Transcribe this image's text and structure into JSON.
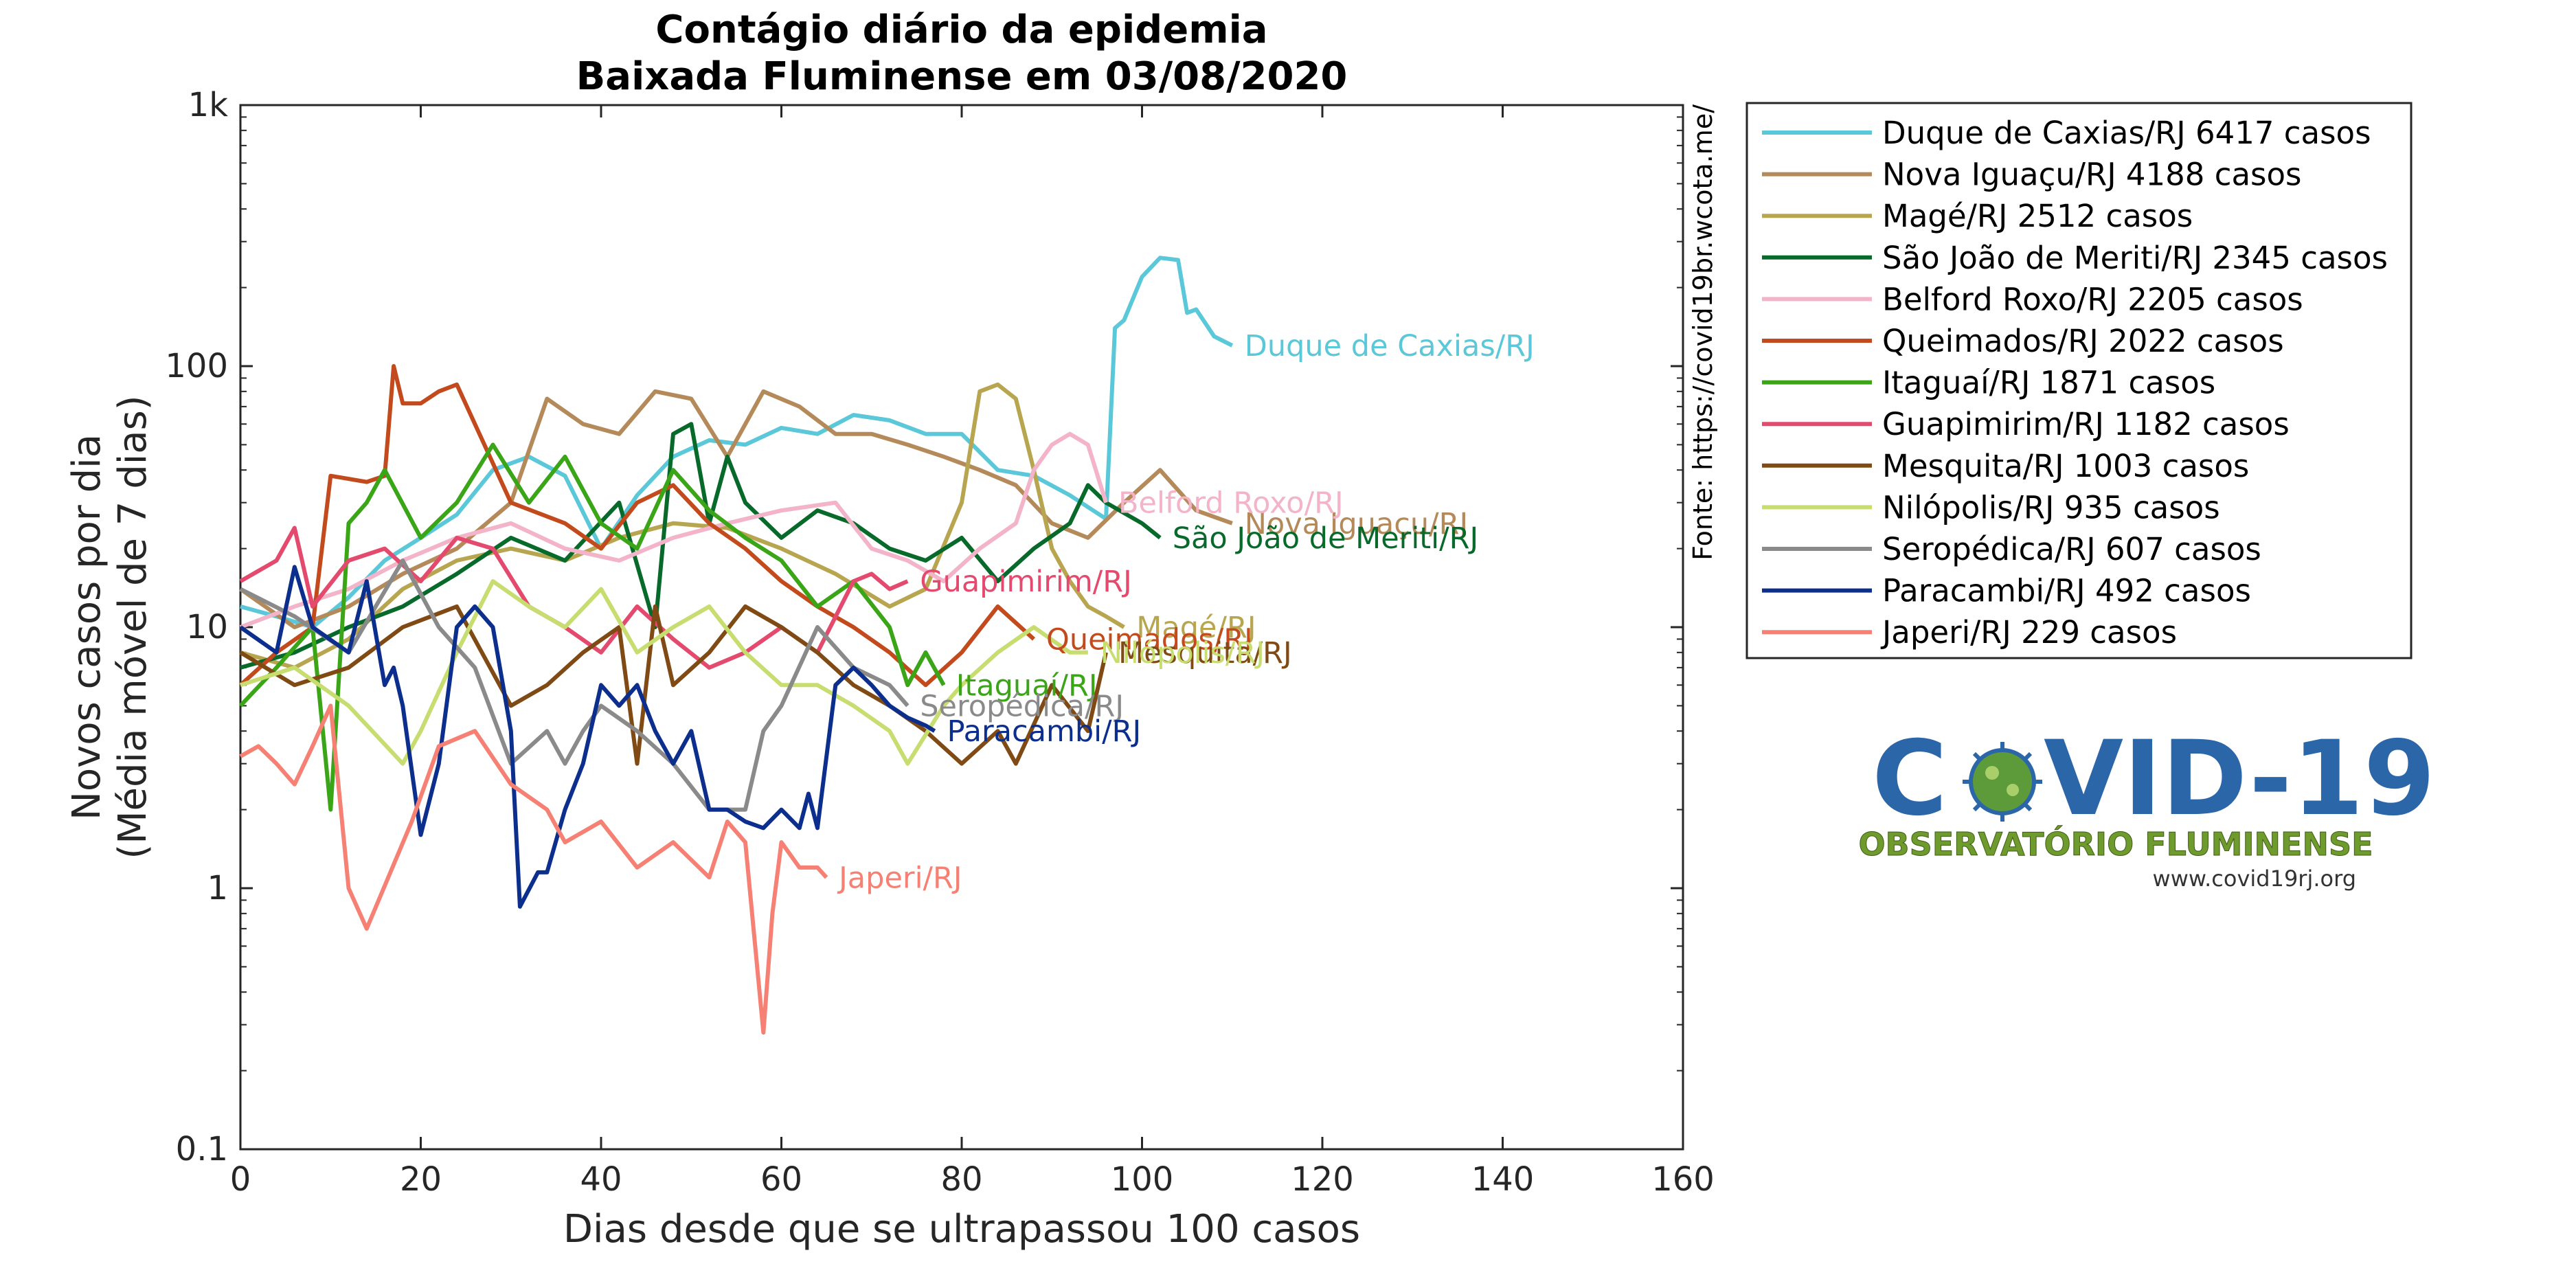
{
  "chart_data": {
    "type": "line",
    "title": "Contágio diário da epidemia",
    "subtitle": "Baixada Fluminense em 03/08/2020",
    "xlabel": "Dias desde que se ultrapassou 100 casos",
    "ylabel_line1": "Novos casos por dia",
    "ylabel_line2": "(Média móvel de 7 dias)",
    "xlim": [
      0,
      160
    ],
    "ylim": [
      0.1,
      1000
    ],
    "y_scale": "log",
    "x_ticks": [
      0,
      20,
      40,
      60,
      80,
      100,
      120,
      140,
      160
    ],
    "y_ticks": [
      {
        "v": 0.1,
        "label": "0.1"
      },
      {
        "v": 1,
        "label": "1"
      },
      {
        "v": 10,
        "label": "10"
      },
      {
        "v": 100,
        "label": "100"
      },
      {
        "v": 1000,
        "label": "1k"
      }
    ],
    "grid": false,
    "legend_position": "outside-right",
    "series": [
      {
        "name": "Duque de Caxias/RJ",
        "legend": "Duque de Caxias/RJ  6417 casos",
        "color": "#5ac8d8",
        "x": [
          0,
          4,
          8,
          12,
          16,
          20,
          24,
          28,
          32,
          36,
          40,
          44,
          48,
          52,
          56,
          60,
          64,
          68,
          72,
          76,
          80,
          84,
          88,
          92,
          96,
          97,
          98,
          100,
          102,
          104,
          105,
          106,
          108,
          110
        ],
        "y": [
          12,
          11,
          10,
          13,
          18,
          22,
          27,
          40,
          45,
          38,
          20,
          32,
          45,
          52,
          50,
          58,
          55,
          65,
          62,
          55,
          55,
          40,
          38,
          32,
          26,
          140,
          150,
          220,
          260,
          255,
          160,
          165,
          130,
          120
        ]
      },
      {
        "name": "Nova Iguaçu/RJ",
        "legend": "Nova Iguaçu/RJ  4188 casos",
        "color": "#b58a5a",
        "x": [
          0,
          6,
          12,
          18,
          24,
          30,
          34,
          38,
          42,
          46,
          50,
          54,
          58,
          62,
          66,
          70,
          74,
          78,
          82,
          86,
          90,
          94,
          98,
          102,
          106,
          110
        ],
        "y": [
          14,
          10,
          12,
          16,
          20,
          30,
          75,
          60,
          55,
          80,
          75,
          45,
          80,
          70,
          55,
          55,
          50,
          45,
          40,
          35,
          25,
          22,
          30,
          40,
          28,
          25
        ]
      },
      {
        "name": "Magé/RJ",
        "legend": "Magé/RJ  2512 casos",
        "color": "#b8a550",
        "x": [
          0,
          6,
          12,
          18,
          24,
          30,
          36,
          42,
          48,
          54,
          60,
          66,
          72,
          76,
          80,
          82,
          84,
          86,
          88,
          90,
          92,
          94,
          96,
          98
        ],
        "y": [
          8,
          7,
          9,
          14,
          18,
          20,
          18,
          22,
          25,
          24,
          20,
          16,
          12,
          14,
          30,
          80,
          85,
          75,
          40,
          20,
          15,
          12,
          11,
          10
        ]
      },
      {
        "name": "São João de Meriti/RJ",
        "legend": "São João de Meriti/RJ  2345 casos",
        "color": "#086a2a",
        "x": [
          0,
          6,
          12,
          18,
          24,
          30,
          36,
          42,
          46,
          48,
          50,
          52,
          54,
          56,
          60,
          64,
          68,
          72,
          76,
          80,
          84,
          88,
          92,
          94,
          96,
          100,
          102
        ],
        "y": [
          7,
          8,
          10,
          12,
          16,
          22,
          18,
          30,
          10,
          55,
          60,
          25,
          45,
          30,
          22,
          28,
          25,
          20,
          18,
          22,
          15,
          20,
          25,
          35,
          30,
          25,
          22
        ]
      },
      {
        "name": "Belford Roxo/RJ",
        "legend": "Belford Roxo/RJ  2205 casos",
        "color": "#f3b3c8",
        "x": [
          0,
          6,
          12,
          18,
          24,
          30,
          36,
          42,
          48,
          54,
          60,
          66,
          70,
          74,
          78,
          82,
          86,
          88,
          90,
          92,
          94,
          96
        ],
        "y": [
          10,
          12,
          14,
          18,
          22,
          25,
          20,
          18,
          22,
          25,
          28,
          30,
          20,
          18,
          15,
          20,
          25,
          40,
          50,
          55,
          50,
          30
        ]
      },
      {
        "name": "Queimados/RJ",
        "legend": "Queimados/RJ  2022 casos",
        "color": "#c24a1c",
        "x": [
          0,
          4,
          8,
          10,
          12,
          14,
          16,
          17,
          18,
          20,
          22,
          24,
          30,
          36,
          40,
          44,
          48,
          52,
          56,
          60,
          64,
          68,
          72,
          76,
          80,
          84,
          88
        ],
        "y": [
          6,
          8,
          10,
          38,
          37,
          36,
          38,
          100,
          72,
          72,
          80,
          85,
          30,
          25,
          20,
          30,
          35,
          25,
          20,
          15,
          12,
          10,
          8,
          6,
          8,
          12,
          9
        ]
      },
      {
        "name": "Itaguaí/RJ",
        "legend": "Itaguaí/RJ  1871 casos",
        "color": "#3aa517",
        "x": [
          0,
          4,
          8,
          10,
          12,
          14,
          16,
          20,
          24,
          28,
          32,
          36,
          40,
          44,
          48,
          52,
          56,
          60,
          64,
          68,
          72,
          74,
          76,
          78
        ],
        "y": [
          5,
          7,
          10,
          2,
          25,
          30,
          40,
          22,
          30,
          50,
          30,
          45,
          25,
          20,
          40,
          28,
          22,
          18,
          12,
          15,
          10,
          6,
          8,
          6
        ]
      },
      {
        "name": "Guapimirim/RJ",
        "legend": "Guapimirim/RJ  1182 casos",
        "color": "#e34a6e",
        "x": [
          0,
          4,
          6,
          8,
          12,
          16,
          20,
          24,
          28,
          32,
          36,
          40,
          44,
          48,
          52,
          56,
          60,
          64,
          68,
          70,
          72,
          74
        ],
        "y": [
          15,
          18,
          24,
          12,
          18,
          20,
          15,
          22,
          20,
          12,
          10,
          8,
          12,
          9,
          7,
          8,
          10,
          8,
          15,
          16,
          14,
          15
        ]
      },
      {
        "name": "Mesquita/RJ",
        "legend": "Mesquita/RJ  1003 casos",
        "color": "#7f4a14",
        "x": [
          0,
          6,
          12,
          18,
          24,
          30,
          34,
          38,
          42,
          44,
          46,
          48,
          52,
          56,
          60,
          64,
          68,
          72,
          76,
          80,
          84,
          86,
          90,
          94,
          96
        ],
        "y": [
          8,
          6,
          7,
          10,
          12,
          5,
          6,
          8,
          10,
          3,
          12,
          6,
          8,
          12,
          10,
          8,
          6,
          5,
          4,
          3,
          4,
          3,
          6,
          4,
          8
        ]
      },
      {
        "name": "Nilópolis/RJ",
        "legend": "Nilópolis/RJ  935 casos",
        "color": "#c7dd70",
        "x": [
          0,
          6,
          12,
          18,
          20,
          24,
          28,
          32,
          36,
          40,
          44,
          48,
          52,
          56,
          60,
          64,
          68,
          72,
          74,
          78,
          80,
          84,
          88,
          92,
          94
        ],
        "y": [
          6,
          7,
          5,
          3,
          4,
          8,
          15,
          12,
          10,
          14,
          8,
          10,
          12,
          8,
          6,
          6,
          5,
          4,
          3,
          5,
          6,
          8,
          10,
          8,
          8
        ]
      },
      {
        "name": "Seropédica/RJ",
        "legend": "Seropédica/RJ  607 casos",
        "color": "#8a8a8a",
        "x": [
          0,
          6,
          12,
          18,
          22,
          26,
          30,
          34,
          36,
          38,
          40,
          44,
          48,
          52,
          54,
          56,
          58,
          60,
          64,
          68,
          72,
          74
        ],
        "y": [
          14,
          11,
          8,
          18,
          10,
          7,
          3,
          4,
          3,
          4,
          5,
          4,
          3,
          2,
          2,
          2,
          4,
          5,
          10,
          7,
          6,
          5
        ]
      },
      {
        "name": "Paracambi/RJ",
        "legend": "Paracambi/RJ  492 casos",
        "color": "#0c2e8c",
        "x": [
          0,
          4,
          6,
          8,
          12,
          14,
          16,
          17,
          18,
          20,
          22,
          24,
          26,
          28,
          30,
          31,
          33,
          34,
          36,
          38,
          40,
          42,
          44,
          46,
          48,
          50,
          52,
          54,
          56,
          58,
          60,
          62,
          63,
          64,
          66,
          68,
          70,
          72,
          74,
          76,
          77
        ],
        "y": [
          10,
          8,
          17,
          10,
          8,
          15,
          6,
          7,
          5,
          1.6,
          3,
          10,
          12,
          10,
          4,
          0.85,
          1.15,
          1.15,
          2,
          3,
          6,
          5,
          6,
          4,
          3,
          4,
          2,
          2,
          1.8,
          1.7,
          2,
          1.7,
          2.3,
          1.7,
          6,
          7,
          6,
          5,
          4.5,
          4.2,
          4
        ]
      },
      {
        "name": "Japeri/RJ",
        "legend": "Japeri/RJ  229 casos",
        "color": "#f58073",
        "x": [
          0,
          2,
          4,
          6,
          8,
          10,
          12,
          14,
          19,
          22,
          26,
          30,
          34,
          36,
          40,
          44,
          48,
          52,
          54,
          56,
          58,
          59,
          60,
          62,
          64,
          65
        ],
        "y": [
          3.2,
          3.5,
          3,
          2.5,
          3.5,
          5,
          1,
          0.7,
          1.8,
          3.5,
          4,
          2.5,
          2,
          1.5,
          1.8,
          1.2,
          1.5,
          1.1,
          1.8,
          1.5,
          0.28,
          0.8,
          1.5,
          1.2,
          1.2,
          1.1
        ]
      }
    ],
    "annotations": {
      "source": "Fonte: https://covid19br.wcota.me/"
    }
  },
  "logo": {
    "main": "COVID-19",
    "subtitle": "OBSERVATÓRIO FLUMINENSE",
    "url": "www.covid19rj.org"
  }
}
